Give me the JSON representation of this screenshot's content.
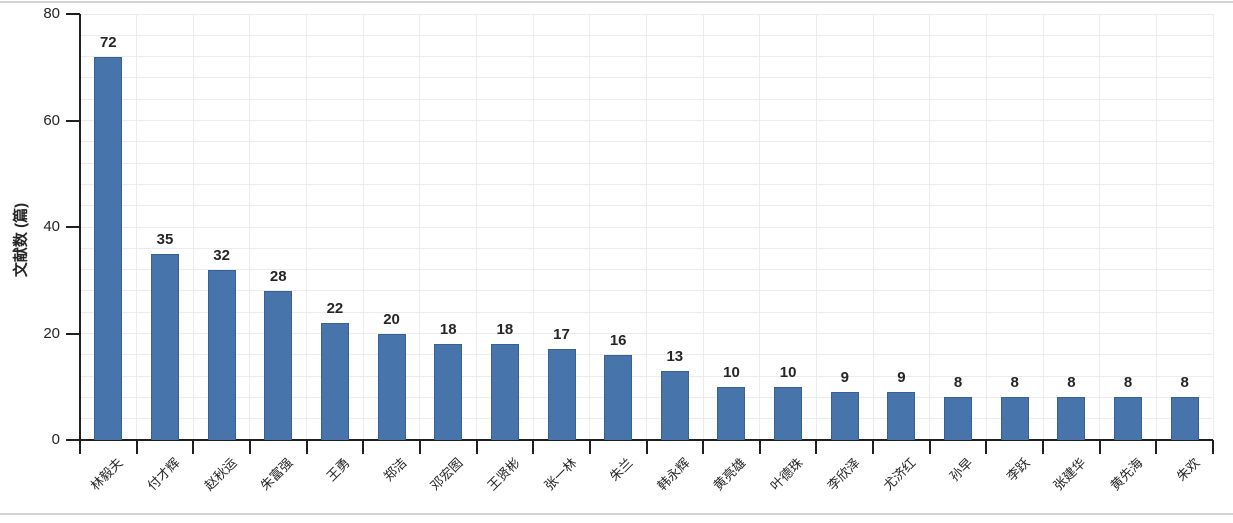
{
  "chart_data": {
    "type": "bar",
    "title": "",
    "xlabel": "",
    "ylabel": "文献数 (篇)",
    "categories": [
      "林毅夫",
      "付才辉",
      "赵秋运",
      "朱富强",
      "王勇",
      "郑洁",
      "邓宏图",
      "王贤彬",
      "张一林",
      "朱兰",
      "韩永辉",
      "黄亮雄",
      "叶德珠",
      "李欣泽",
      "尤济红",
      "孙早",
      "李跃",
      "张建华",
      "黄先海",
      "朱欢"
    ],
    "values": [
      72,
      35,
      32,
      28,
      22,
      20,
      18,
      18,
      17,
      16,
      13,
      10,
      10,
      9,
      9,
      8,
      8,
      8,
      8,
      8
    ],
    "ylim": [
      0,
      80
    ],
    "y_major_ticks": [
      0,
      20,
      40,
      60,
      80
    ],
    "y_minor_step": 4,
    "grid": "on",
    "legend": "none",
    "data_labels": "on",
    "colors": {
      "bar": "#4774aa",
      "grid": "#ececec",
      "axis": "#1f1f1f",
      "text": "#262626",
      "border": "#d4d4d4"
    }
  }
}
